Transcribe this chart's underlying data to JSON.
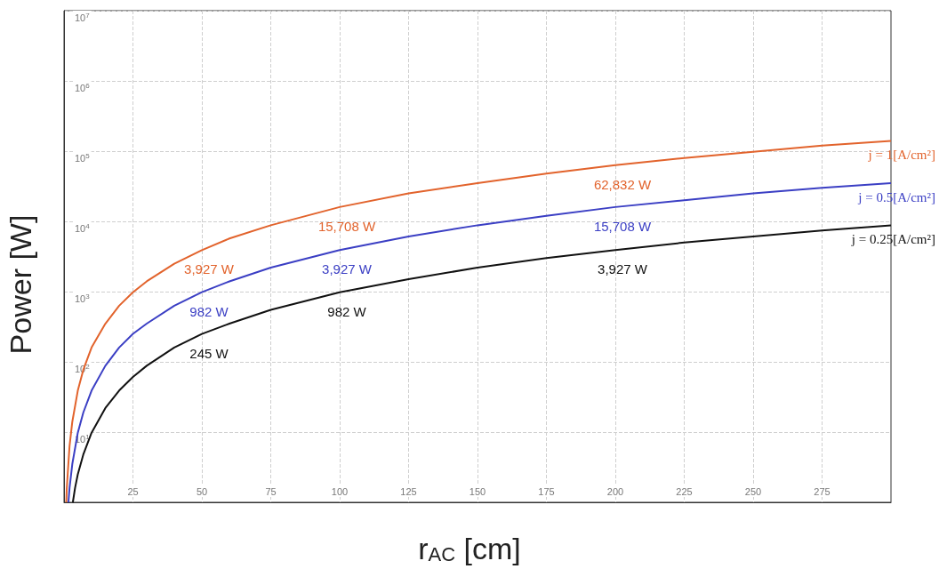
{
  "chart_data": {
    "type": "line",
    "xlabel": "r$_{AC}$ [cm]",
    "ylabel": "Power [W]",
    "log": "y",
    "grid": true,
    "legend": false,
    "marker": "none",
    "line_style": "solid",
    "xlim": [
      0,
      300
    ],
    "xticks": [
      25,
      50,
      75,
      100,
      125,
      150,
      175,
      200,
      225,
      250,
      275
    ],
    "ylim": [
      1,
      10000000
    ],
    "yticks": [
      {
        "value": 1,
        "label": null
      },
      {
        "value": 10,
        "label": "10$^{1}$"
      },
      {
        "value": 100,
        "label": "10$^{2}$"
      },
      {
        "value": 1000,
        "label": "10$^{3}$"
      },
      {
        "value": 10000,
        "label": "10$^{4}$"
      },
      {
        "value": 100000,
        "label": "10$^{5}$"
      },
      {
        "value": 1000000,
        "label": "10$^{6}$"
      },
      {
        "value": 10000000,
        "label": "10$^{7}$"
      }
    ],
    "series": [
      {
        "name": "j = 1[A/cm²]",
        "color": "#e2632c",
        "x": [
          0.8,
          1,
          2,
          3,
          5,
          7,
          10,
          15,
          20,
          25,
          30,
          40,
          50,
          60,
          75,
          100,
          125,
          150,
          175,
          200,
          225,
          250,
          275,
          300
        ],
        "values": [
          1.0,
          1.6,
          6.3,
          14,
          39,
          77,
          160,
          350,
          630,
          980,
          1400,
          2500,
          3900,
          5700,
          8800,
          16000,
          25000,
          35000,
          48000,
          63000,
          80000,
          98000,
          120000,
          140000
        ]
      },
      {
        "name": "j = 0.5[A/cm²]",
        "color": "#3b3fc4",
        "x": [
          1.6,
          2,
          3,
          5,
          7,
          10,
          15,
          20,
          25,
          30,
          40,
          50,
          60,
          75,
          100,
          125,
          150,
          175,
          200,
          225,
          250,
          275,
          300
        ],
        "values": [
          1.0,
          1.6,
          3.5,
          9.8,
          19,
          39,
          88,
          160,
          250,
          350,
          630,
          980,
          1400,
          2200,
          3900,
          6100,
          8800,
          12000,
          16000,
          20000,
          25000,
          30000,
          35000
        ]
      },
      {
        "name": "j = 0.25[A/cm²]",
        "color": "#111111",
        "x": [
          3.2,
          4,
          5,
          7,
          10,
          15,
          20,
          25,
          30,
          40,
          50,
          60,
          75,
          100,
          125,
          150,
          175,
          200,
          225,
          250,
          275,
          300
        ],
        "values": [
          1.0,
          1.6,
          2.5,
          4.8,
          9.8,
          22,
          39,
          61,
          88,
          160,
          250,
          350,
          550,
          980,
          1500,
          2200,
          3000,
          3900,
          5000,
          6100,
          7400,
          8800
        ]
      }
    ],
    "annotations": [
      {
        "text": "3,927 W",
        "x": 50,
        "y": 3900
      },
      {
        "text": "15,708 W",
        "x": 100,
        "y": 16000
      },
      {
        "text": "62,832 W",
        "x": 200,
        "y": 63000
      },
      {
        "text": "982 W",
        "x": 50,
        "y": 980
      },
      {
        "text": "3,927 W",
        "x": 100,
        "y": 3900
      },
      {
        "text": "15,708 W",
        "x": 200,
        "y": 16000
      },
      {
        "text": "245 W",
        "x": 50,
        "y": 250
      },
      {
        "text": "982 W",
        "x": 100,
        "y": 980
      },
      {
        "text": "3,927 W",
        "x": 200,
        "y": 3900
      }
    ]
  }
}
